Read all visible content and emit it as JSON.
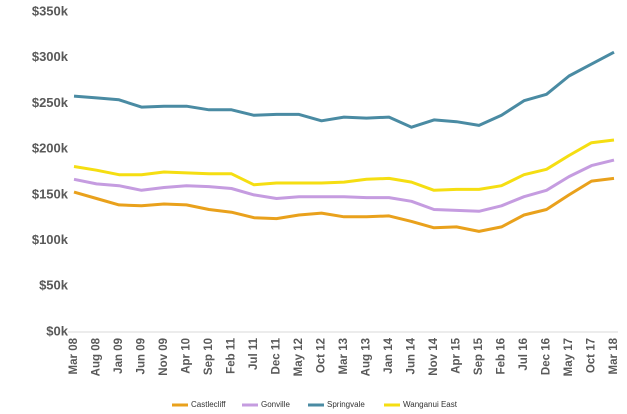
{
  "chart_data": {
    "type": "line",
    "categories": [
      "Mar 08",
      "Aug 08",
      "Jan 09",
      "Jun 09",
      "Nov 09",
      "Apr 10",
      "Sep 10",
      "Feb 11",
      "Jul 11",
      "Dec 11",
      "May 12",
      "Oct 12",
      "Mar 13",
      "Aug 13",
      "Jan 14",
      "Jun 14",
      "Nov 14",
      "Apr 15",
      "Sep 15",
      "Feb 16",
      "Jul 16",
      "Dec 16",
      "May 17",
      "Oct 17",
      "Mar 18"
    ],
    "series": [
      {
        "name": "Castlecliff",
        "color": "#e9a11c",
        "values": [
          153000,
          146000,
          139000,
          138000,
          140000,
          139000,
          134000,
          131000,
          125000,
          124000,
          128000,
          130000,
          126000,
          126000,
          127000,
          121000,
          114000,
          115000,
          110000,
          115000,
          128000,
          134000,
          150000,
          165000,
          168000
        ]
      },
      {
        "name": "Gonville",
        "color": "#c59ce0",
        "values": [
          167000,
          162000,
          160000,
          155000,
          158000,
          160000,
          159000,
          157000,
          150000,
          146000,
          148000,
          148000,
          148000,
          147000,
          147000,
          143000,
          134000,
          133000,
          132000,
          138000,
          148000,
          155000,
          170000,
          182000,
          188000
        ]
      },
      {
        "name": "Springvale",
        "color": "#4a8ba3",
        "values": [
          258000,
          256000,
          254000,
          246000,
          247000,
          247000,
          243000,
          243000,
          237000,
          238000,
          238000,
          231000,
          235000,
          234000,
          235000,
          224000,
          232000,
          230000,
          226000,
          237000,
          253000,
          260000,
          280000,
          293000,
          306000
        ]
      },
      {
        "name": "Wanganui East",
        "color": "#f5de12",
        "values": [
          181000,
          177000,
          172000,
          172000,
          175000,
          174000,
          173000,
          173000,
          161000,
          163000,
          163000,
          163000,
          164000,
          167000,
          168000,
          164000,
          155000,
          156000,
          156000,
          160000,
          172000,
          178000,
          193000,
          207000,
          210000
        ]
      }
    ],
    "ylim": [
      0,
      350000
    ],
    "yticks": [
      {
        "value": 0,
        "label": "$0k"
      },
      {
        "value": 50000,
        "label": "$50k"
      },
      {
        "value": 100000,
        "label": "$100k"
      },
      {
        "value": 150000,
        "label": "$150k"
      },
      {
        "value": 200000,
        "label": "$200k"
      },
      {
        "value": 250000,
        "label": "$250k"
      },
      {
        "value": 300000,
        "label": "$300k"
      },
      {
        "value": 350000,
        "label": "$350k"
      }
    ],
    "legend": "bottom"
  }
}
